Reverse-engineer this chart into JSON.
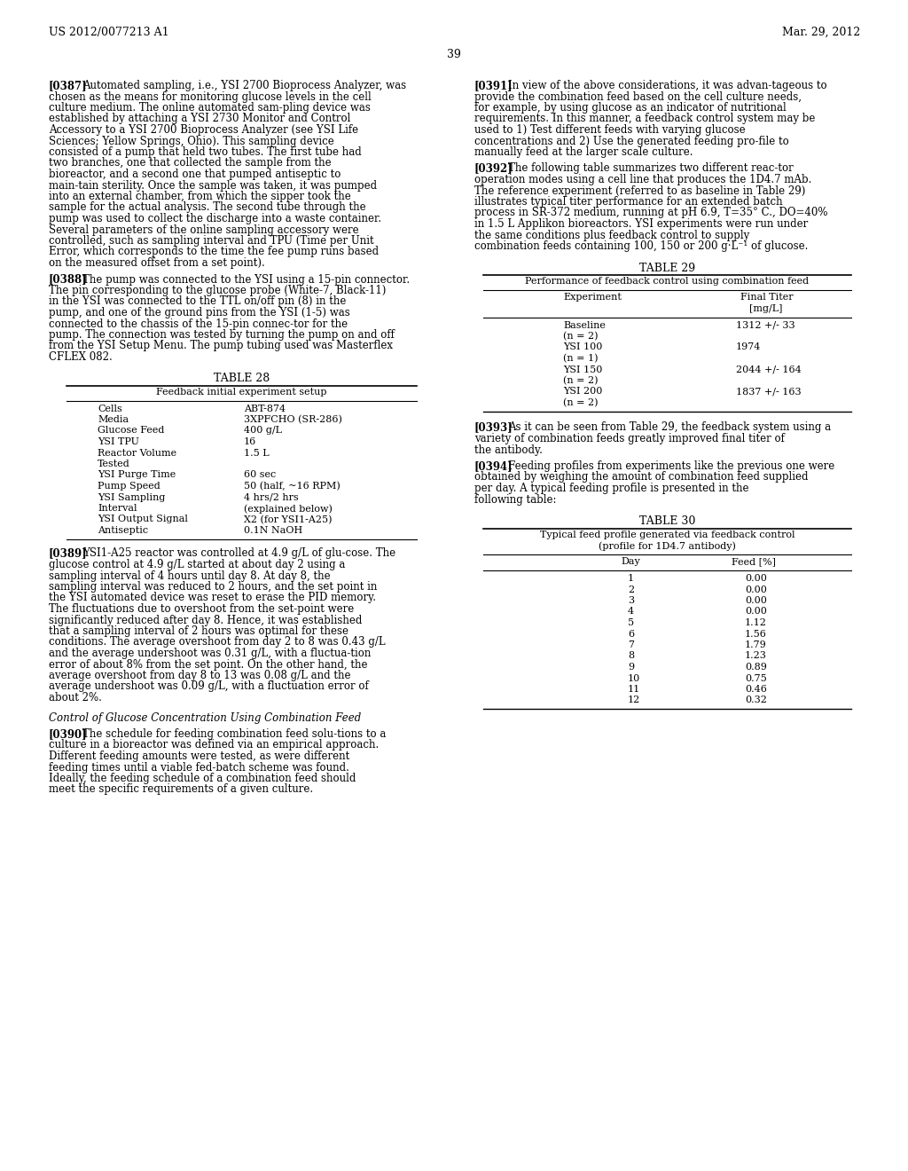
{
  "bg_color": "#ffffff",
  "header_left": "US 2012/0077213 A1",
  "header_right": "Mar. 29, 2012",
  "page_number": "39",
  "left_col": {
    "paragraphs": [
      {
        "tag": "[0387]",
        "text": "Automated sampling, i.e., YSI 2700 Bioprocess Analyzer, was chosen as the means for monitoring glucose levels in the cell culture medium. The online automated sampling device was established by attaching a YSI 2730 Monitor and Control Accessory to a YSI 2700 Bioprocess Analyzer (see YSI Life Sciences; Yellow Springs, Ohio). This sampling device consisted of a pump that held two tubes. The first tube had two branches, one that collected the sample from the bioreactor, and a second one that pumped antiseptic to maintain sterility. Once the sample was taken, it was pumped into an external chamber, from which the sipper took the sample for the actual analysis. The second tube through the pump was used to collect the discharge into a waste container. Several parameters of the online sampling accessory were controlled, such as sampling interval and TPU (Time per Unit Error, which corresponds to the time the fee pump runs based on the measured offset from a set point)."
      },
      {
        "tag": "[0388]",
        "text": "The pump was connected to the YSI using a 15-pin connector. The pin corresponding to the glucose probe (White-7, Black-11) in the YSI was connected to the TTL on/off pin (8) in the pump, and one of the ground pins from the YSI (1-5) was connected to the chassis of the 15-pin connector for the pump. The connection was tested by turning the pump on and off from the YSI Setup Menu. The pump tubing used was Masterflex CFLEX 082."
      }
    ],
    "table28": {
      "title": "TABLE 28",
      "subtitle": "Feedback initial experiment setup",
      "rows": [
        [
          "Cells",
          "ABT-874"
        ],
        [
          "Media",
          "3XPFCHO (SR-286)"
        ],
        [
          "Glucose Feed",
          "400 g/L"
        ],
        [
          "YSI TPU",
          "16"
        ],
        [
          "Reactor Volume",
          "1.5 L"
        ],
        [
          "Tested",
          ""
        ],
        [
          "YSI Purge Time",
          "60 sec"
        ],
        [
          "Pump Speed",
          "50 (half, ~16 RPM)"
        ],
        [
          "YSI Sampling",
          "4 hrs/2 hrs"
        ],
        [
          "Interval",
          "(explained below)"
        ],
        [
          "YSI Output Signal",
          "X2 (for YSI1-A25)"
        ],
        [
          "Antiseptic",
          "0.1N NaOH"
        ]
      ]
    },
    "paragraphs2": [
      {
        "tag": "[0389]",
        "text": "YSI1-A25 reactor was controlled at 4.9 g/L of glucose. The glucose control at 4.9 g/L started at about day 2 using a sampling interval of 4 hours until day 8. At day 8, the sampling interval was reduced to 2 hours, and the set point in the YSI automated device was reset to erase the PID memory. The fluctuations due to overshoot from the set-point were significantly reduced after day 8. Hence, it was established that a sampling interval of 2 hours was optimal for these conditions. The average overshoot from day 2 to 8 was 0.43 g/L and the average undershoot was 0.31 g/L, with a fluctuation error of about 8% from the set point. On the other hand, the average overshoot from day 8 to 13 was 0.08 g/L and the average undershoot was 0.09 g/L, with a fluctuation error of about 2%."
      },
      {
        "tag": "Control of Glucose Concentration Using Combination Feed",
        "text": "",
        "italic": true
      },
      {
        "tag": "[0390]",
        "text": "The schedule for feeding combination feed solutions to a culture in a bioreactor was defined via an empirical approach. Different feeding amounts were tested, as were different feeding times until a viable fed-batch scheme was found. Ideally, the feeding schedule of a combination feed should meet the specific requirements of a given culture."
      }
    ]
  },
  "right_col": {
    "paragraphs": [
      {
        "tag": "[0391]",
        "text": "In view of the above considerations, it was advantageous to provide the combination feed based on the cell culture needs, for example, by using glucose as an indicator of nutritional requirements. In this manner, a feedback control system may be used to 1) Test different feeds with varying glucose concentrations and 2) Use the generated feeding profile to manually feed at the larger scale culture."
      },
      {
        "tag": "[0392]",
        "text": "The following table summarizes two different reactor operation modes using a cell line that produces the 1D4.7 mAb. The reference experiment (referred to as baseline in Table 29) illustrates typical titer performance for an extended batch process in SR-372 medium, running at pH 6.9, T=35° C., DO=40% in 1.5 L Applikon bioreactors. YSI experiments were run under the same conditions plus feedback control to supply combination feeds containing 100, 150 or 200 g·L⁻¹ of glucose."
      }
    ],
    "table29": {
      "title": "TABLE 29",
      "subtitle": "Performance of feedback control using combination feed",
      "col_header": [
        "Experiment",
        "Final Titer\n[mg/L]"
      ],
      "rows": [
        [
          "Baseline",
          "1312 +/- 33"
        ],
        [
          "(n = 2)",
          ""
        ],
        [
          "YSI 100",
          "1974"
        ],
        [
          "(n = 1)",
          ""
        ],
        [
          "YSI 150",
          "2044 +/- 164"
        ],
        [
          "(n = 2)",
          ""
        ],
        [
          "YSI 200",
          "1837 +/- 163"
        ],
        [
          "(n = 2)",
          ""
        ]
      ]
    },
    "paragraphs2": [
      {
        "tag": "[0393]",
        "text": "As it can be seen from Table 29, the feedback system using a variety of combination feeds greatly improved final titer of the antibody."
      },
      {
        "tag": "[0394]",
        "text": "Feeding profiles from experiments like the previous one were obtained by weighing the amount of combination feed supplied per day. A typical feeding profile is presented in the following table:"
      }
    ],
    "table30": {
      "title": "TABLE 30",
      "subtitle": "Typical feed profile generated via feedback control\n(profile for 1D4.7 antibody)",
      "col_header": [
        "Day",
        "Feed [%]"
      ],
      "rows": [
        [
          "1",
          "0.00"
        ],
        [
          "2",
          "0.00"
        ],
        [
          "3",
          "0.00"
        ],
        [
          "4",
          "0.00"
        ],
        [
          "5",
          "1.12"
        ],
        [
          "6",
          "1.56"
        ],
        [
          "7",
          "1.79"
        ],
        [
          "8",
          "1.23"
        ],
        [
          "9",
          "0.89"
        ],
        [
          "10",
          "0.75"
        ],
        [
          "11",
          "0.46"
        ],
        [
          "12",
          "0.32"
        ]
      ]
    }
  }
}
